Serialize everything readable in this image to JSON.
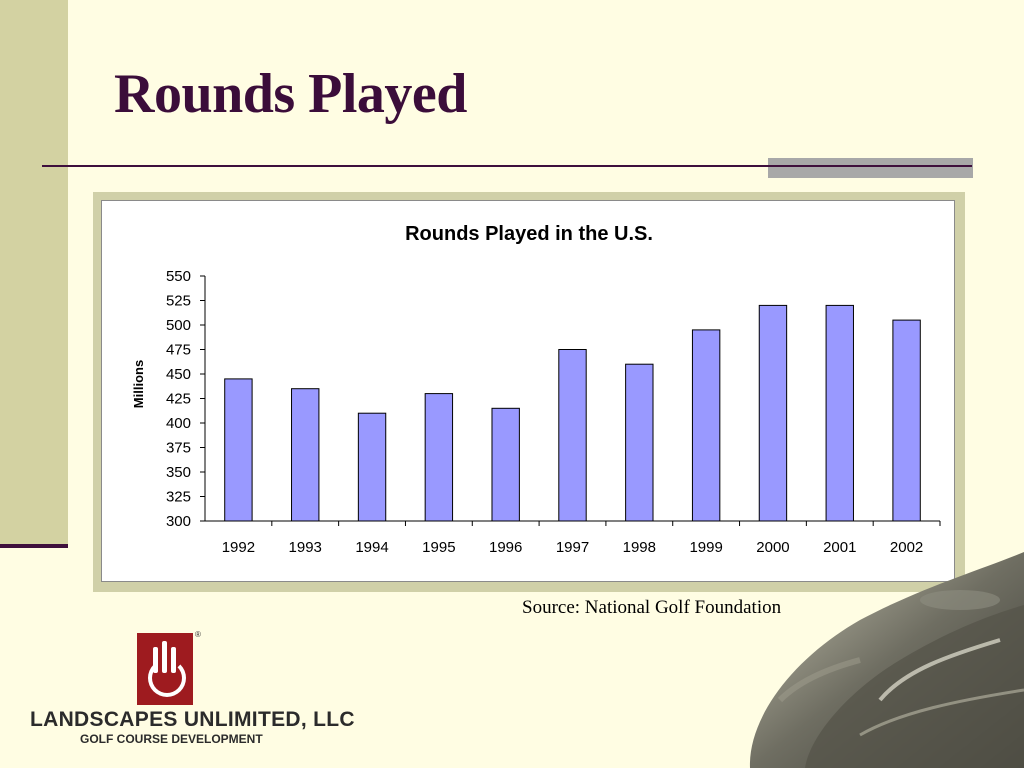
{
  "slide": {
    "title": "Rounds Played",
    "source": "Source: National Golf Foundation"
  },
  "logo": {
    "company": "LANDSCAPES UNLIMITED, LLC",
    "tagline": "GOLF COURSE DEVELOPMENT",
    "trademark": "®"
  },
  "colors": {
    "background": "#FFFDE3",
    "accent_bar": "#D3D2A2",
    "title": "#3B0D3A",
    "rule": "#3E0F3C",
    "bar_fill": "#9999FF",
    "logo_red": "#9E1B1F"
  },
  "chart_data": {
    "type": "bar",
    "title": "Rounds Played in the U.S.",
    "xlabel": "",
    "ylabel": "Millions",
    "categories": [
      "1992",
      "1993",
      "1994",
      "1995",
      "1996",
      "1997",
      "1998",
      "1999",
      "2000",
      "2001",
      "2002"
    ],
    "values": [
      445,
      435,
      410,
      430,
      415,
      475,
      460,
      495,
      520,
      520,
      505
    ],
    "ylim": [
      300,
      550
    ],
    "yticks": [
      300,
      325,
      350,
      375,
      400,
      425,
      450,
      475,
      500,
      525,
      550
    ],
    "grid": false,
    "legend": "none"
  }
}
